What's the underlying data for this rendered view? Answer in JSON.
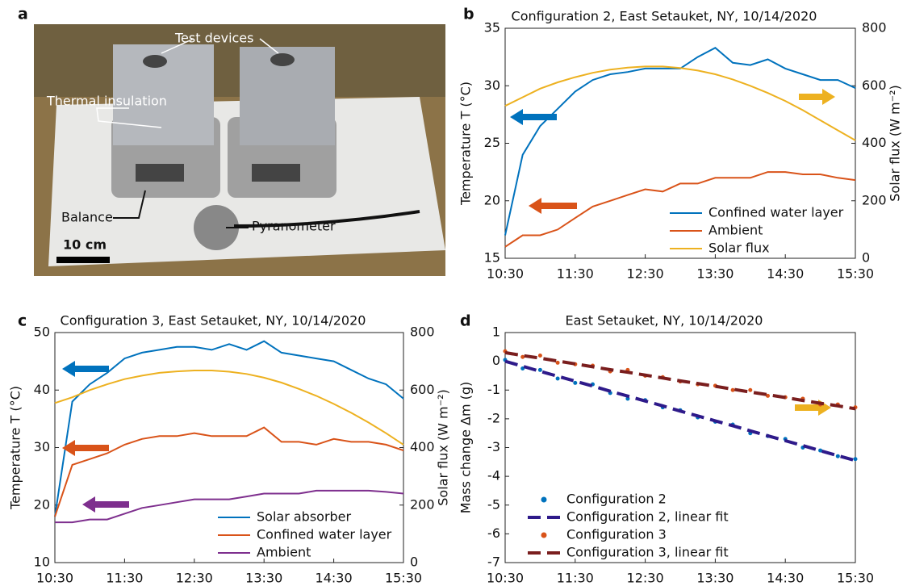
{
  "photo": {
    "panel_label": "a",
    "annotations": [
      "Test devices",
      "Thermal insulation",
      "Balance",
      "Pyranometer"
    ],
    "scale_bar": "10 cm"
  },
  "chart_data": [
    {
      "type": "line",
      "panel_label": "b",
      "title": "Configuration 2, East Setauket, NY, 10/14/2020",
      "ylabel": "Temperature T (°C)",
      "y2label": "Solar flux (W m⁻²)",
      "legend": "lower right",
      "x": [
        "10:30",
        "10:45",
        "11:00",
        "11:15",
        "11:30",
        "11:45",
        "12:00",
        "12:15",
        "12:30",
        "12:45",
        "13:00",
        "13:15",
        "13:30",
        "13:45",
        "14:00",
        "14:15",
        "14:30",
        "14:45",
        "15:00",
        "15:15",
        "15:30"
      ],
      "xlim": [
        "10:30",
        "15:30"
      ],
      "xticks": [
        "10:30",
        "11:30",
        "12:30",
        "13:30",
        "14:30",
        "15:30"
      ],
      "ylim": [
        15,
        35
      ],
      "yticks": [
        15,
        20,
        25,
        30,
        35
      ],
      "y2lim": [
        0,
        800
      ],
      "y2ticks": [
        0,
        200,
        400,
        600,
        800
      ],
      "series": [
        {
          "name": "Confined water layer",
          "color": "#0072bd",
          "values": [
            17,
            24,
            26.5,
            28,
            29.5,
            30.5,
            31,
            31.2,
            31.5,
            31.5,
            31.5,
            32.5,
            33.3,
            32,
            31.8,
            32.3,
            31.5,
            31,
            30.5,
            30.5,
            29.8
          ]
        },
        {
          "name": "Ambient",
          "color": "#d95319",
          "values": [
            16,
            17,
            17,
            17.5,
            18.5,
            19.5,
            20,
            20.5,
            21,
            20.8,
            21.5,
            21.5,
            22,
            22,
            22,
            22.5,
            22.5,
            22.3,
            22.3,
            22,
            21.8
          ]
        },
        {
          "name": "Solar flux",
          "color": "#edb120",
          "axis": "y2",
          "values": [
            530,
            560,
            590,
            612,
            630,
            645,
            656,
            663,
            667,
            667,
            662,
            653,
            640,
            622,
            600,
            575,
            547,
            515,
            480,
            445,
            410
          ]
        }
      ]
    },
    {
      "type": "line",
      "panel_label": "c",
      "title": "Configuration 3, East Setauket, NY, 10/14/2020",
      "ylabel": "Temperature T (°C)",
      "y2label": "Solar flux (W m⁻²)",
      "legend": "lower right",
      "x": [
        "10:30",
        "10:45",
        "11:00",
        "11:15",
        "11:30",
        "11:45",
        "12:00",
        "12:15",
        "12:30",
        "12:45",
        "13:00",
        "13:15",
        "13:30",
        "13:45",
        "14:00",
        "14:15",
        "14:30",
        "14:45",
        "15:00",
        "15:15",
        "15:30"
      ],
      "xlim": [
        "10:30",
        "15:30"
      ],
      "xticks": [
        "10:30",
        "11:30",
        "12:30",
        "13:30",
        "14:30",
        "15:30"
      ],
      "ylim": [
        10,
        50
      ],
      "yticks": [
        10,
        20,
        30,
        40,
        50
      ],
      "y2lim": [
        0,
        800
      ],
      "y2ticks": [
        0,
        200,
        400,
        600,
        800
      ],
      "series": [
        {
          "name": "Solar absorber",
          "color": "#0072bd",
          "values": [
            18,
            38,
            41,
            43,
            45.5,
            46.5,
            47,
            47.5,
            47.5,
            47,
            48,
            47,
            48.5,
            46.5,
            46,
            45.5,
            45,
            43.5,
            42,
            41,
            38.5
          ]
        },
        {
          "name": "Confined water layer",
          "color": "#d95319",
          "values": [
            18,
            27,
            28,
            29,
            30.5,
            31.5,
            32,
            32,
            32.5,
            32,
            32,
            32,
            33.5,
            31,
            31,
            30.5,
            31.5,
            31,
            31,
            30.5,
            29.5
          ]
        },
        {
          "name": "Ambient",
          "color": "#7e2f8e",
          "values": [
            17,
            17,
            17.5,
            17.5,
            18.5,
            19.5,
            20,
            20.5,
            21,
            21,
            21,
            21.5,
            22,
            22,
            22,
            22.5,
            22.5,
            22.5,
            22.5,
            22.3,
            22
          ]
        },
        {
          "color": "#edb120",
          "axis": "y2",
          "values": [
            555,
            575,
            600,
            620,
            638,
            650,
            660,
            665,
            668,
            668,
            664,
            656,
            643,
            626,
            604,
            580,
            552,
            521,
            487,
            450,
            410
          ]
        }
      ]
    },
    {
      "type": "scatter",
      "panel_label": "d",
      "title": "East Setauket, NY, 10/14/2020",
      "ylabel": "Mass change Δm (g)",
      "legend": "lower left",
      "x": [
        "10:30",
        "10:45",
        "11:00",
        "11:15",
        "11:30",
        "11:45",
        "12:00",
        "12:15",
        "12:30",
        "12:45",
        "13:00",
        "13:15",
        "13:30",
        "13:45",
        "14:00",
        "14:15",
        "14:30",
        "14:45",
        "15:00",
        "15:15",
        "15:30"
      ],
      "xlim": [
        "10:30",
        "15:30"
      ],
      "xticks": [
        "10:30",
        "11:30",
        "12:30",
        "13:30",
        "14:30",
        "15:30"
      ],
      "ylim": [
        -7,
        1
      ],
      "yticks": [
        -7,
        -6,
        -5,
        -4,
        -3,
        -2,
        -1,
        0,
        1
      ],
      "series": [
        {
          "name": "Configuration 2",
          "color": "#0072bd",
          "mode": "markers",
          "values": [
            0.05,
            -0.25,
            -0.3,
            -0.6,
            -0.75,
            -0.8,
            -1.1,
            -1.3,
            -1.35,
            -1.6,
            -1.7,
            -1.95,
            -2.1,
            -2.2,
            -2.5,
            -2.6,
            -2.7,
            -3.0,
            -3.1,
            -3.3,
            -3.4
          ]
        },
        {
          "name": "Configuration 2, linear fit",
          "color": "#2e1a8a",
          "mode": "dashed",
          "values": [
            0,
            -0.17,
            -0.35,
            -0.52,
            -0.69,
            -0.86,
            -1.04,
            -1.21,
            -1.38,
            -1.55,
            -1.73,
            -1.9,
            -2.07,
            -2.24,
            -2.42,
            -2.59,
            -2.76,
            -2.93,
            -3.11,
            -3.28,
            -3.45
          ]
        },
        {
          "name": "Configuration 3",
          "color": "#d95319",
          "mode": "markers",
          "values": [
            0.35,
            0.15,
            0.2,
            -0.05,
            -0.1,
            -0.15,
            -0.35,
            -0.3,
            -0.5,
            -0.55,
            -0.7,
            -0.8,
            -0.85,
            -1.0,
            -1.0,
            -1.2,
            -1.25,
            -1.3,
            -1.5,
            -1.5,
            -1.6
          ]
        },
        {
          "name": "Configuration 3, linear fit",
          "color": "#7a1e1e",
          "mode": "dashed",
          "values": [
            0.3,
            0.2,
            0.11,
            0.01,
            -0.09,
            -0.19,
            -0.29,
            -0.38,
            -0.48,
            -0.58,
            -0.68,
            -0.77,
            -0.87,
            -0.97,
            -1.07,
            -1.16,
            -1.26,
            -1.36,
            -1.46,
            -1.55,
            -1.65
          ]
        }
      ]
    }
  ]
}
